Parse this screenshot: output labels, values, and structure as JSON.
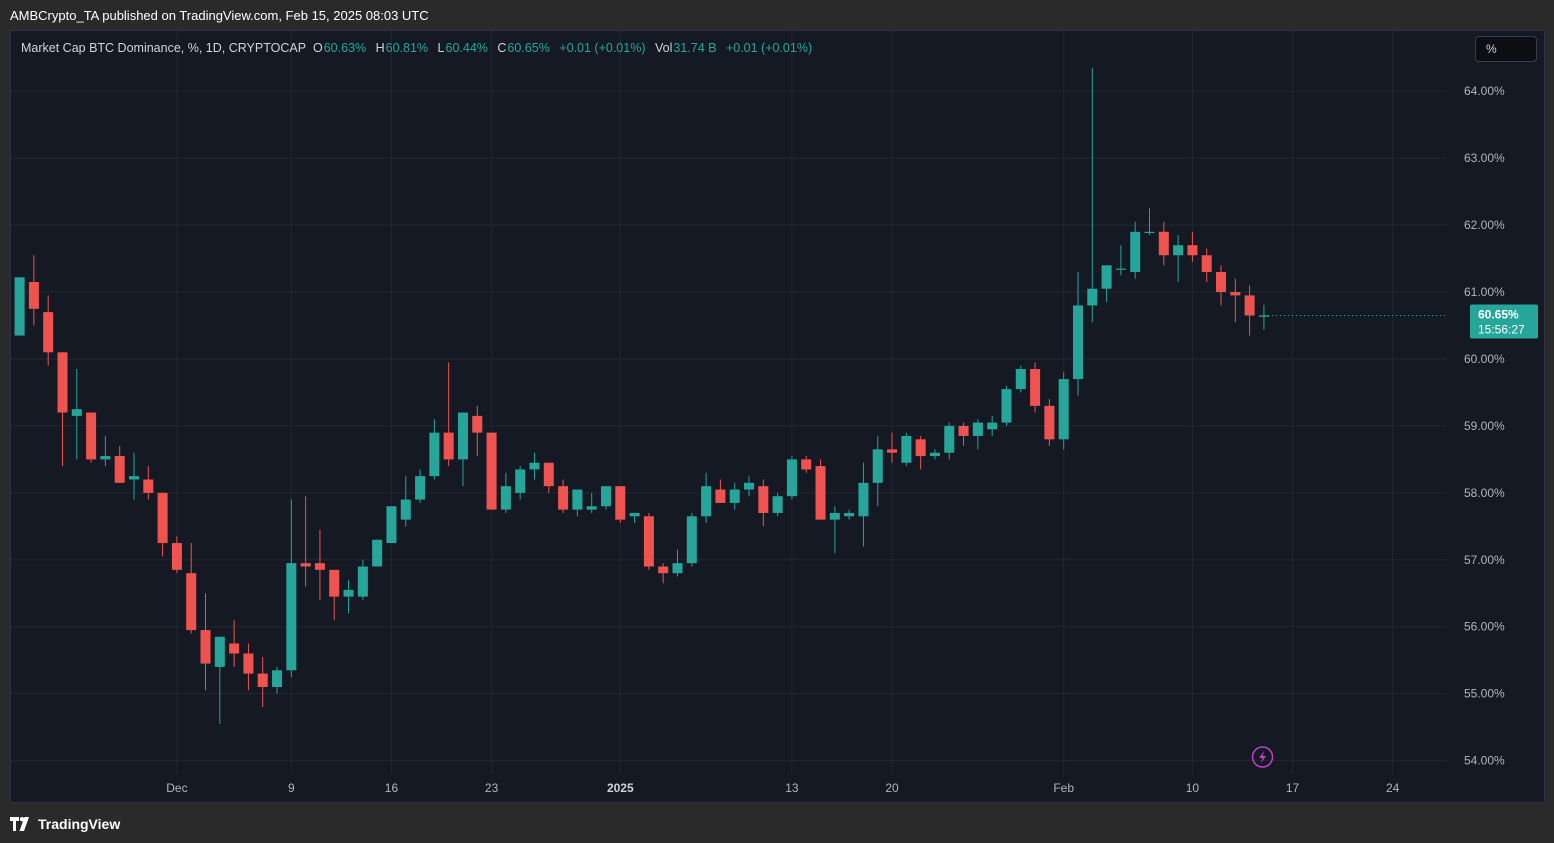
{
  "header": {
    "published": "AMBCrypto_TA published on TradingView.com, Feb 15, 2025 08:03 UTC"
  },
  "legend": {
    "symbol": "Market Cap BTC Dominance, %, 1D, CRYPTOCAP",
    "o_label": "O",
    "o": "60.63%",
    "h_label": "H",
    "h": "60.81%",
    "l_label": "L",
    "l": "60.44%",
    "c_label": "C",
    "c": "60.65%",
    "change": "+0.01 (+0.01%)",
    "vol_label": "Vol",
    "vol": "31.74 B",
    "vol_change": "+0.01 (+0.01%)"
  },
  "unit_box": "%",
  "price_tag": {
    "price": "60.65%",
    "countdown": "15:56:27"
  },
  "footer": {
    "brand": "TradingView"
  },
  "colors": {
    "up": "#26a69a",
    "down": "#ef5350",
    "grid": "#232735",
    "text": "#b2b5be",
    "tag": "#26a69a"
  },
  "chart_data": {
    "type": "candlestick",
    "ylim": [
      53.8,
      64.9
    ],
    "y_ticks": [
      54,
      55,
      56,
      57,
      58,
      59,
      60,
      61,
      62,
      63,
      64
    ],
    "y_tick_labels": [
      "54.00%",
      "55.00%",
      "56.00%",
      "57.00%",
      "58.00%",
      "59.00%",
      "60.00%",
      "61.00%",
      "62.00%",
      "63.00%",
      "64.00%"
    ],
    "x_ticks": [
      {
        "label": "Dec",
        "day": 11,
        "bold": false
      },
      {
        "label": "9",
        "day": 19,
        "bold": false
      },
      {
        "label": "16",
        "day": 26,
        "bold": false
      },
      {
        "label": "23",
        "day": 33,
        "bold": false
      },
      {
        "label": "2025",
        "day": 42,
        "bold": true
      },
      {
        "label": "13",
        "day": 54,
        "bold": false
      },
      {
        "label": "20",
        "day": 61,
        "bold": false
      },
      {
        "label": "Feb",
        "day": 73,
        "bold": false
      },
      {
        "label": "10",
        "day": 82,
        "bold": false
      },
      {
        "label": "17",
        "day": 89,
        "bold": false
      },
      {
        "label": "24",
        "day": 96,
        "bold": false
      }
    ],
    "x_range": [
      -0.6,
      99.8
    ],
    "ohlc": [
      [
        60.35,
        61.22,
        60.35,
        61.22
      ],
      [
        61.15,
        61.55,
        60.5,
        60.75
      ],
      [
        60.7,
        60.95,
        59.9,
        60.1
      ],
      [
        60.1,
        60.1,
        58.4,
        59.2
      ],
      [
        59.15,
        59.85,
        58.5,
        59.25
      ],
      [
        59.2,
        59.2,
        58.45,
        58.5
      ],
      [
        58.5,
        58.85,
        58.4,
        58.55
      ],
      [
        58.55,
        58.7,
        58.15,
        58.15
      ],
      [
        58.2,
        58.6,
        57.9,
        58.25
      ],
      [
        58.2,
        58.4,
        57.9,
        58.0
      ],
      [
        58.0,
        58.0,
        57.05,
        57.25
      ],
      [
        57.25,
        57.35,
        56.8,
        56.85
      ],
      [
        56.8,
        57.25,
        55.9,
        55.95
      ],
      [
        55.95,
        56.5,
        55.05,
        55.45
      ],
      [
        55.4,
        55.85,
        54.55,
        55.85
      ],
      [
        55.75,
        56.1,
        55.4,
        55.6
      ],
      [
        55.6,
        55.75,
        55.05,
        55.3
      ],
      [
        55.3,
        55.55,
        54.8,
        55.1
      ],
      [
        55.1,
        55.4,
        55.0,
        55.35
      ],
      [
        55.35,
        57.9,
        55.25,
        56.95
      ],
      [
        56.95,
        57.95,
        56.6,
        56.9
      ],
      [
        56.95,
        57.45,
        56.4,
        56.85
      ],
      [
        56.85,
        56.85,
        56.1,
        56.45
      ],
      [
        56.45,
        56.7,
        56.2,
        56.55
      ],
      [
        56.45,
        57.0,
        56.4,
        56.9
      ],
      [
        56.9,
        57.3,
        56.9,
        57.3
      ],
      [
        57.25,
        57.8,
        57.25,
        57.8
      ],
      [
        57.6,
        58.25,
        57.5,
        57.9
      ],
      [
        57.9,
        58.35,
        57.85,
        58.25
      ],
      [
        58.25,
        59.1,
        58.2,
        58.9
      ],
      [
        58.9,
        59.95,
        58.4,
        58.5
      ],
      [
        58.5,
        59.2,
        58.1,
        59.2
      ],
      [
        59.15,
        59.3,
        58.55,
        58.9
      ],
      [
        58.9,
        58.9,
        57.75,
        57.75
      ],
      [
        57.75,
        58.3,
        57.7,
        58.1
      ],
      [
        58.0,
        58.4,
        57.9,
        58.35
      ],
      [
        58.35,
        58.6,
        58.2,
        58.45
      ],
      [
        58.45,
        58.45,
        58.0,
        58.1
      ],
      [
        58.1,
        58.2,
        57.7,
        57.75
      ],
      [
        57.75,
        58.05,
        57.65,
        58.05
      ],
      [
        57.75,
        58.0,
        57.7,
        57.8
      ],
      [
        57.8,
        58.1,
        57.75,
        58.1
      ],
      [
        58.1,
        58.1,
        57.55,
        57.6
      ],
      [
        57.65,
        57.7,
        57.55,
        57.7
      ],
      [
        57.65,
        57.7,
        56.85,
        56.9
      ],
      [
        56.9,
        56.95,
        56.65,
        56.8
      ],
      [
        56.8,
        57.15,
        56.75,
        56.95
      ],
      [
        56.95,
        57.7,
        56.9,
        57.65
      ],
      [
        57.65,
        58.3,
        57.55,
        58.1
      ],
      [
        58.05,
        58.2,
        57.85,
        57.85
      ],
      [
        57.85,
        58.15,
        57.75,
        58.05
      ],
      [
        58.05,
        58.25,
        57.95,
        58.15
      ],
      [
        58.1,
        58.2,
        57.5,
        57.7
      ],
      [
        57.7,
        58.0,
        57.65,
        57.95
      ],
      [
        57.95,
        58.55,
        57.9,
        58.5
      ],
      [
        58.5,
        58.55,
        58.3,
        58.35
      ],
      [
        58.4,
        58.5,
        57.6,
        57.6
      ],
      [
        57.6,
        57.8,
        57.1,
        57.7
      ],
      [
        57.65,
        57.75,
        57.6,
        57.7
      ],
      [
        57.65,
        58.45,
        57.2,
        58.15
      ],
      [
        58.15,
        58.85,
        57.8,
        58.65
      ],
      [
        58.65,
        58.9,
        58.45,
        58.6
      ],
      [
        58.45,
        58.9,
        58.4,
        58.85
      ],
      [
        58.8,
        58.85,
        58.35,
        58.55
      ],
      [
        58.55,
        58.65,
        58.5,
        58.6
      ],
      [
        58.6,
        59.05,
        58.5,
        59.0
      ],
      [
        59.0,
        59.05,
        58.7,
        58.85
      ],
      [
        58.85,
        59.1,
        58.65,
        59.05
      ],
      [
        58.95,
        59.15,
        58.85,
        59.05
      ],
      [
        59.05,
        59.6,
        59.0,
        59.55
      ],
      [
        59.55,
        59.9,
        59.5,
        59.85
      ],
      [
        59.85,
        59.95,
        59.2,
        59.3
      ],
      [
        59.3,
        59.4,
        58.7,
        58.8
      ],
      [
        58.8,
        59.8,
        58.65,
        59.7
      ],
      [
        59.7,
        61.3,
        59.45,
        60.8
      ],
      [
        60.8,
        64.35,
        60.55,
        61.05
      ],
      [
        61.05,
        61.4,
        60.85,
        61.4
      ],
      [
        61.35,
        61.7,
        61.25,
        61.35
      ],
      [
        61.3,
        62.05,
        61.2,
        61.9
      ],
      [
        61.9,
        62.25,
        61.85,
        61.9
      ],
      [
        61.9,
        62.05,
        61.4,
        61.55
      ],
      [
        61.55,
        61.85,
        61.15,
        61.7
      ],
      [
        61.7,
        61.9,
        61.45,
        61.55
      ],
      [
        61.55,
        61.65,
        61.15,
        61.3
      ],
      [
        61.3,
        61.4,
        60.8,
        61.0
      ],
      [
        61.0,
        61.2,
        60.55,
        60.95
      ],
      [
        60.95,
        61.1,
        60.35,
        60.65
      ],
      [
        60.63,
        60.81,
        60.44,
        60.65
      ]
    ]
  }
}
